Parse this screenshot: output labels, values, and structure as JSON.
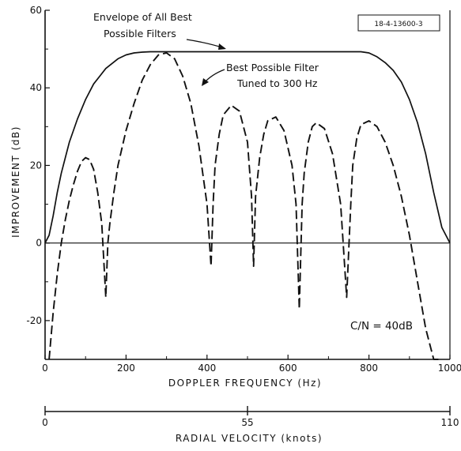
{
  "chart_data": {
    "type": "line",
    "xlabel": "DOPPLER FREQUENCY (Hz)",
    "ylabel": "IMPROVEMENT (dB)",
    "xlim": [
      0,
      1000
    ],
    "ylim": [
      -30,
      60
    ],
    "xticks": [
      0,
      200,
      400,
      600,
      800,
      1000
    ],
    "yticks": [
      -20,
      0,
      20,
      40,
      60
    ],
    "grid": false,
    "figure_id": "18-4-13600-3",
    "condition": "C/N = 40dB",
    "series": [
      {
        "name": "Envelope of All Best Possible Filters",
        "style": "solid",
        "x": [
          0,
          10,
          20,
          30,
          40,
          50,
          60,
          80,
          100,
          120,
          150,
          180,
          200,
          220,
          240,
          260,
          300,
          400,
          500,
          600,
          700,
          780,
          800,
          820,
          840,
          860,
          880,
          900,
          920,
          940,
          960,
          980,
          1000
        ],
        "y": [
          0,
          2,
          7,
          13,
          18,
          22,
          26,
          32,
          37,
          41,
          45,
          47.5,
          48.5,
          49,
          49.2,
          49.3,
          49.3,
          49.3,
          49.3,
          49.3,
          49.3,
          49.3,
          49,
          48,
          46.5,
          44.5,
          41.5,
          37,
          31,
          23,
          13,
          4,
          0
        ]
      },
      {
        "name": "Best Possible Filter Tuned to 300 Hz",
        "style": "dashed",
        "x": [
          10,
          20,
          30,
          40,
          50,
          60,
          70,
          80,
          90,
          100,
          110,
          120,
          130,
          140,
          150,
          155,
          160,
          170,
          180,
          200,
          220,
          240,
          260,
          280,
          300,
          320,
          340,
          360,
          380,
          400,
          410,
          415,
          420,
          430,
          440,
          460,
          480,
          500,
          510,
          515,
          520,
          530,
          540,
          550,
          570,
          590,
          610,
          620,
          628,
          635,
          640,
          650,
          660,
          670,
          690,
          710,
          730,
          745,
          755,
          760,
          770,
          780,
          800,
          820,
          840,
          860,
          880,
          900,
          920,
          940,
          960,
          975
        ],
        "y": [
          -30,
          -18,
          -8,
          0,
          6,
          11,
          15,
          18.5,
          21,
          22,
          21.5,
          19,
          13,
          5,
          -14,
          0,
          5,
          13,
          20,
          29,
          36,
          42,
          46,
          48.5,
          49,
          47.5,
          43,
          36,
          25,
          10,
          -6,
          10,
          20,
          28,
          33,
          35.5,
          34,
          26,
          12,
          -6,
          12,
          22,
          28,
          31.5,
          32.5,
          29,
          20,
          10,
          -17,
          10,
          18,
          26,
          30,
          31,
          29.5,
          23,
          10,
          -14,
          10,
          20,
          27,
          30.5,
          31.5,
          30,
          26,
          20,
          12,
          2,
          -10,
          -22,
          -30,
          -30
        ]
      }
    ],
    "annotations": {
      "envelope_label": [
        "Envelope of All Best",
        "Possible Filters"
      ],
      "filter_label": [
        "Best Possible Filter",
        "Tuned to 300 Hz"
      ]
    },
    "secondary_axis": {
      "label": "RADIAL VELOCITY (knots)",
      "ticks": [
        0,
        55,
        110
      ],
      "range": [
        0,
        110
      ]
    }
  }
}
